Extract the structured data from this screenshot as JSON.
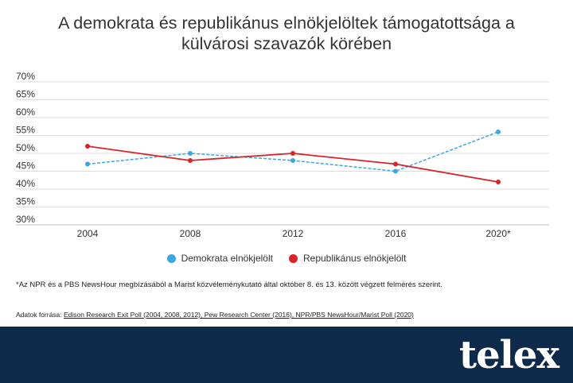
{
  "header": {
    "title_line1": "A demokrata és republikánus elnökjelöltek támogatottsága a",
    "title_line2": "külvárosi szavazók körében"
  },
  "chart_data": {
    "type": "line",
    "title": "A demokrata és republikánus elnökjelöltek támogatottsága a külvárosi szavazók körében",
    "categories": [
      "2004",
      "2008",
      "2012",
      "2016",
      "2020*"
    ],
    "yticks": [
      "70%",
      "65%",
      "60%",
      "55%",
      "50%",
      "45%",
      "40%",
      "35%",
      "30%"
    ],
    "ylim": [
      30,
      70
    ],
    "grid": true,
    "legend_position": "bottom",
    "series": [
      {
        "name": "Demokrata elnökjelölt",
        "values": [
          47,
          50,
          48,
          45,
          56
        ],
        "color": "#3aa8e0",
        "style": "dashed"
      },
      {
        "name": "Republikánus elnökjelölt",
        "values": [
          52,
          48,
          50,
          47,
          42
        ],
        "color": "#d9232a",
        "style": "solid"
      }
    ]
  },
  "legend": {
    "items": [
      {
        "label": "Demokrata elnökjelölt",
        "color": "#3aa8e0"
      },
      {
        "label": "Republikánus elnökjelölt",
        "color": "#d9232a"
      }
    ]
  },
  "footnote": "*Az NPR és a PBS NewsHour megbízásából a Marist közvéleménykutató által október 8. és 13. között végzett felmérés szerint.",
  "source": {
    "label": "Adatok forrása: ",
    "links": "Edison Research Exit Poll (2004, 2008, 2012), Pew Research Center (2016), NPR/PBS NewsHour/Marist Poll (2020)"
  },
  "footer": {
    "logo": "telex",
    "background": "#0d2a4a"
  }
}
